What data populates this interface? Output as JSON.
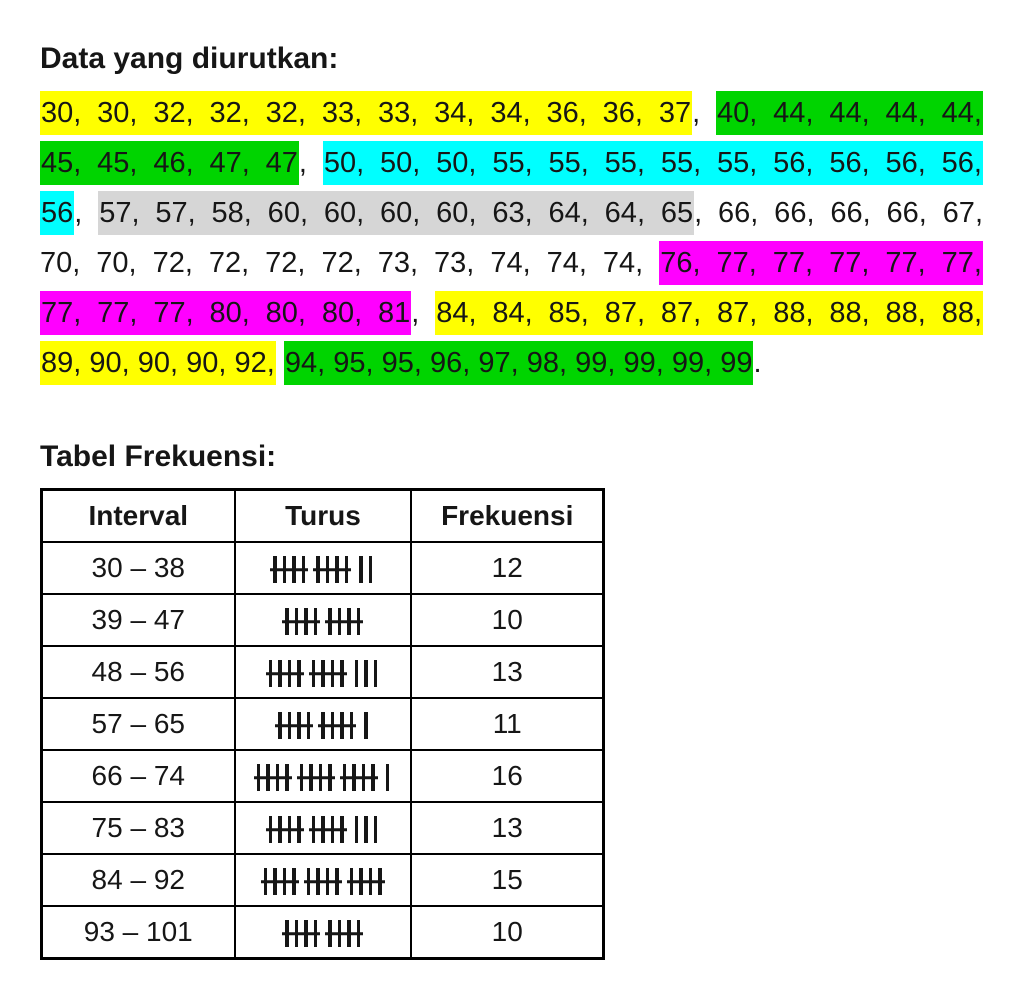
{
  "title": "Data yang diurutkan:",
  "table_title": "Tabel Frekuensi:",
  "colors": {
    "yellow": "#ffff00",
    "green": "#00d400",
    "cyan": "#00ffff",
    "gray": "#d6d6d6",
    "magenta": "#ff00ff"
  },
  "data_lines": [
    {
      "segments": [
        {
          "text": "30, 30, 32, 32, 32, 33, 33, 34, 34, 36, 36, 37",
          "highlight": "yellow"
        },
        {
          "text": ", ",
          "highlight": "none"
        },
        {
          "text": "40, 44, 44, 44, 44,",
          "highlight": "green"
        }
      ]
    },
    {
      "segments": [
        {
          "text": "45, 45, 46, 47, 47",
          "highlight": "green"
        },
        {
          "text": ", ",
          "highlight": "none"
        },
        {
          "text": "50, 50, 50, 55, 55, 55, 55, 55, 56, 56, 56, 56,",
          "highlight": "cyan"
        }
      ]
    },
    {
      "segments": [
        {
          "text": "56",
          "highlight": "cyan"
        },
        {
          "text": ", ",
          "highlight": "none"
        },
        {
          "text": "57, 57, 58, 60, 60, 60, 60, 63, 64, 64, 65",
          "highlight": "gray"
        },
        {
          "text": ", 66, 66, 66, 66, 67,",
          "highlight": "none"
        }
      ]
    },
    {
      "segments": [
        {
          "text": "70, 70, 72, 72, 72, 72, 73, 73, 74, 74, 74, ",
          "highlight": "none"
        },
        {
          "text": "76, 77, 77, 77, 77, 77,",
          "highlight": "magenta"
        }
      ]
    },
    {
      "segments": [
        {
          "text": "77, 77, 77, 80, 80, 80, 81",
          "highlight": "magenta"
        },
        {
          "text": ", ",
          "highlight": "none"
        },
        {
          "text": "84, 84, 85, 87, 87, 87, 88, 88, 88, 88,",
          "highlight": "yellow"
        }
      ]
    },
    {
      "last": true,
      "segments": [
        {
          "text": "89, 90, 90, 90, 92,",
          "highlight": "yellow"
        },
        {
          "text": " ",
          "highlight": "none"
        },
        {
          "text": "94, 95, 95, 96, 97, 98, 99, 99, 99, 99",
          "highlight": "green"
        },
        {
          "text": ".",
          "highlight": "none"
        }
      ]
    }
  ],
  "table": {
    "headers": [
      "Interval",
      "Turus",
      "Frekuensi"
    ],
    "rows": [
      {
        "interval": "30 – 38",
        "tally": [
          5,
          5,
          2
        ],
        "frequency": "12"
      },
      {
        "interval": "39 – 47",
        "tally": [
          5,
          5
        ],
        "frequency": "10"
      },
      {
        "interval": "48 – 56",
        "tally": [
          5,
          5,
          3
        ],
        "frequency": "13"
      },
      {
        "interval": "57 – 65",
        "tally": [
          5,
          5,
          1
        ],
        "frequency": "11"
      },
      {
        "interval": "66 – 74",
        "tally": [
          5,
          5,
          5,
          1
        ],
        "frequency": "16"
      },
      {
        "interval": "75 – 83",
        "tally": [
          5,
          5,
          3
        ],
        "frequency": "13"
      },
      {
        "interval": "84 – 92",
        "tally": [
          5,
          5,
          5
        ],
        "frequency": "15"
      },
      {
        "interval": "93 – 101",
        "tally": [
          5,
          5
        ],
        "frequency": "10"
      }
    ]
  }
}
